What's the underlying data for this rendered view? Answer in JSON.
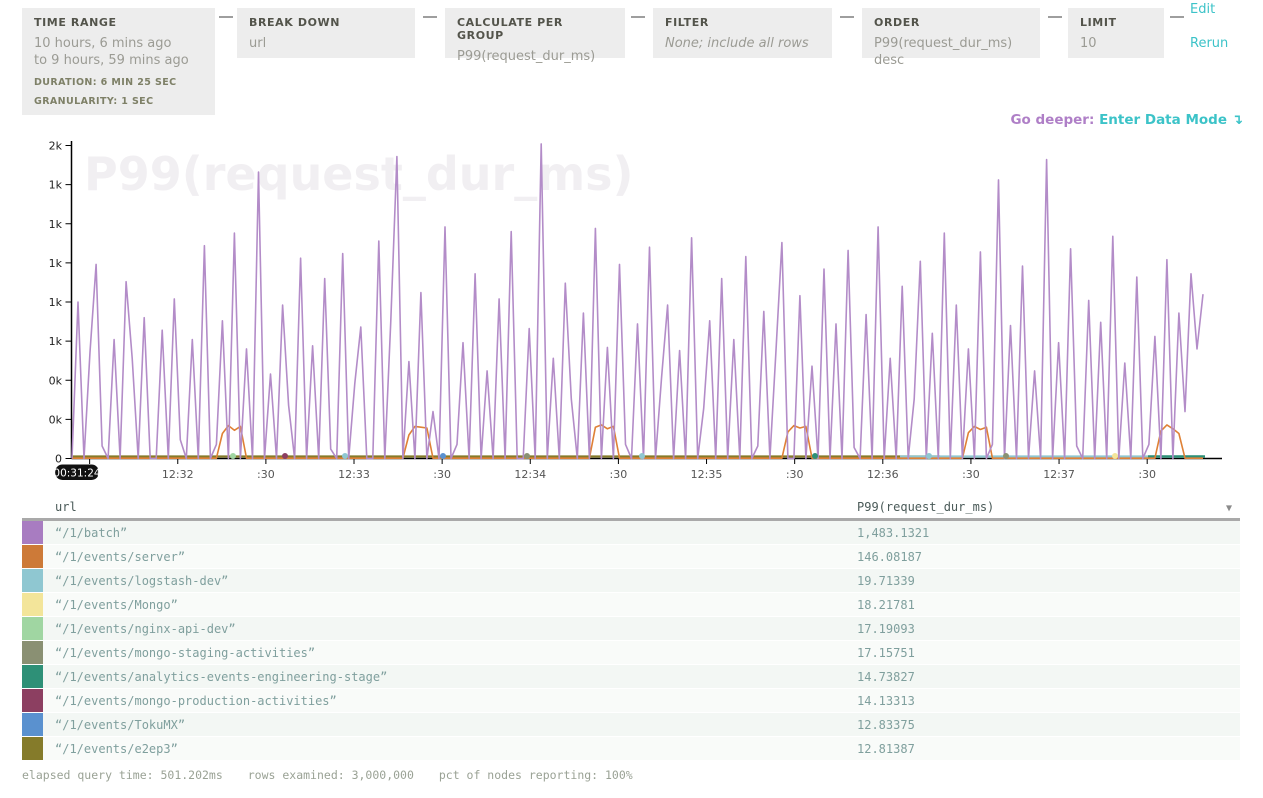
{
  "panels": {
    "time_range": {
      "title": "TIME RANGE",
      "line1": "10 hours, 6 mins ago",
      "line2": "to 9 hours, 59 mins ago",
      "duration": "DURATION: 6 MIN 25 SEC",
      "granularity": "GRANULARITY: 1 SEC"
    },
    "break_down": {
      "title": "BREAK DOWN",
      "value": "url"
    },
    "calculate": {
      "title": "CALCULATE PER GROUP",
      "value": "P99(request_dur_ms)"
    },
    "filter": {
      "title": "FILTER",
      "value": "None; include all rows"
    },
    "order": {
      "title": "ORDER",
      "value": "P99(request_dur_ms) desc"
    },
    "limit": {
      "title": "LIMIT",
      "value": "10"
    },
    "edit_label": "Edit",
    "rerun_label": "Rerun"
  },
  "go_deeper": {
    "prefix": "Go deeper:",
    "link": "Enter Data Mode",
    "arrow": "↴"
  },
  "chart_data": {
    "type": "line",
    "title": "P99(request_dur_ms)",
    "xlabel": "",
    "ylabel": "",
    "ylim": [
      0,
      2000
    ],
    "duration_sec": 385,
    "grid": false,
    "legend_position": "none",
    "y_ticks": [
      {
        "v": 2000,
        "label": "2k"
      },
      {
        "v": 1750,
        "label": "1k"
      },
      {
        "v": 1500,
        "label": "1k"
      },
      {
        "v": 1250,
        "label": "1k"
      },
      {
        "v": 1000,
        "label": "1k"
      },
      {
        "v": 750,
        "label": "1k"
      },
      {
        "v": 500,
        "label": "0k"
      },
      {
        "v": 250,
        "label": "0k"
      },
      {
        "v": 0,
        "label": "0"
      }
    ],
    "x_start_badge": {
      "label": "00:31:24",
      "s": 0
    },
    "x_ticks": [
      {
        "s": 6,
        "label": ""
      },
      {
        "s": 36,
        "label": "12:32"
      },
      {
        "s": 66,
        "label": ":30"
      },
      {
        "s": 96,
        "label": "12:33"
      },
      {
        "s": 126,
        "label": ":30"
      },
      {
        "s": 156,
        "label": "12:34"
      },
      {
        "s": 186,
        "label": ":30"
      },
      {
        "s": 216,
        "label": "12:35"
      },
      {
        "s": 246,
        "label": ":30"
      },
      {
        "s": 276,
        "label": "12:36"
      },
      {
        "s": 306,
        "label": ":30"
      },
      {
        "s": 336,
        "label": "12:37"
      },
      {
        "s": 366,
        "label": ":30"
      }
    ],
    "series": [
      {
        "name": "“/1/batch”",
        "color": "#b38cc8",
        "values": [
          0,
          1000,
          0,
          680,
          1240,
          80,
          0,
          760,
          0,
          1130,
          640,
          0,
          900,
          0,
          0,
          820,
          0,
          1020,
          120,
          0,
          760,
          0,
          1360,
          0,
          90,
          880,
          0,
          1440,
          0,
          700,
          0,
          1830,
          0,
          540,
          0,
          980,
          340,
          0,
          1280,
          0,
          720,
          0,
          1150,
          60,
          0,
          1310,
          0,
          480,
          840,
          0,
          0,
          1390,
          0,
          880,
          1930,
          0,
          620,
          0,
          1060,
          0,
          300,
          0,
          1480,
          0,
          90,
          740,
          0,
          1180,
          0,
          560,
          0,
          1020,
          0,
          1450,
          0,
          0,
          830,
          0,
          2010,
          0,
          640,
          0,
          1120,
          380,
          0,
          930,
          0,
          1470,
          0,
          710,
          0,
          1240,
          90,
          0,
          860,
          0,
          1350,
          0,
          520,
          980,
          0,
          690,
          0,
          1410,
          0,
          320,
          880,
          0,
          1150,
          0,
          760,
          0,
          1290,
          0,
          80,
          940,
          0,
          680,
          1380,
          0,
          0,
          1040,
          0,
          590,
          0,
          1210,
          0,
          860,
          0,
          1330,
          70,
          0,
          920,
          0,
          1480,
          0,
          640,
          0,
          1100,
          0,
          380,
          1260,
          0,
          800,
          0,
          1440,
          0,
          980,
          0,
          700,
          0,
          1320,
          0,
          90,
          1780,
          0,
          850,
          0,
          1230,
          0,
          560,
          0,
          1910,
          0,
          740,
          0,
          1340,
          80,
          0,
          1010,
          0,
          870,
          0,
          1420,
          0,
          610,
          0,
          1160,
          0,
          90,
          780,
          0,
          1270,
          0,
          930,
          300,
          1180,
          700,
          1050
        ]
      },
      {
        "name": "“/1/events/server”",
        "color": "#df8136",
        "bumps": [
          {
            "i": 25,
            "values": [
              160,
              210,
              180,
              205
            ]
          },
          {
            "i": 56,
            "values": [
              150,
              205,
              200,
              195
            ]
          },
          {
            "i": 87,
            "values": [
              200,
              215,
              190,
              205
            ]
          },
          {
            "i": 119,
            "values": [
              170,
              210,
              195,
              205
            ]
          },
          {
            "i": 149,
            "values": [
              165,
              205,
              185,
              200
            ]
          },
          {
            "i": 181,
            "values": [
              175,
              215,
              190,
              160
            ]
          }
        ]
      }
    ],
    "baseline_segments": [
      {
        "x0": 72,
        "x1": 940,
        "color": "#857b2a",
        "width": 2.2
      },
      {
        "x0": 900,
        "x1": 1203,
        "color": "#8fc7d1",
        "width": 2.2
      },
      {
        "x0": 1148,
        "x1": 1205,
        "color": "#2e9077",
        "width": 2.6
      }
    ],
    "baseline_dots": [
      {
        "x": 233,
        "color": "#a0d6a2"
      },
      {
        "x": 285,
        "color": "#8c3f61"
      },
      {
        "x": 345,
        "color": "#8fc7d1"
      },
      {
        "x": 443,
        "color": "#5a91cf"
      },
      {
        "x": 527,
        "color": "#8a9073"
      },
      {
        "x": 642,
        "color": "#8fc7d1"
      },
      {
        "x": 815,
        "color": "#2e9077"
      },
      {
        "x": 929,
        "color": "#8fc7d1"
      },
      {
        "x": 1006,
        "color": "#8a9073"
      },
      {
        "x": 1115,
        "color": "#f3e59a"
      }
    ]
  },
  "table": {
    "columns": [
      "url",
      "P99(request_dur_ms)"
    ],
    "sort_icon": "▼",
    "rows": [
      {
        "color": "#a87cc1",
        "url": "“/1/batch”",
        "value": "1,483.1321"
      },
      {
        "color": "#cd7a38",
        "url": "“/1/events/server”",
        "value": "146.08187"
      },
      {
        "color": "#8fc7d1",
        "url": "“/1/events/logstash-dev”",
        "value": "19.71339"
      },
      {
        "color": "#f3e59a",
        "url": "“/1/events/Mongo”",
        "value": "18.21781"
      },
      {
        "color": "#a0d6a2",
        "url": "“/1/events/nginx-api-dev”",
        "value": "17.19093"
      },
      {
        "color": "#8a9073",
        "url": "“/1/events/mongo-staging-activities”",
        "value": "17.15751"
      },
      {
        "color": "#2e9077",
        "url": "“/1/events/analytics-events-engineering-stage”",
        "value": "14.73827"
      },
      {
        "color": "#8c3f61",
        "url": "“/1/events/mongo-production-activities”",
        "value": "14.13313"
      },
      {
        "color": "#5a91cf",
        "url": "“/1/events/TokuMX”",
        "value": "12.83375"
      },
      {
        "color": "#857b2a",
        "url": "“/1/events/e2ep3”",
        "value": "12.81387"
      }
    ]
  },
  "footer": {
    "stats": [
      "elapsed query time: 501.202ms",
      "rows examined: 3,000,000",
      "pct of nodes reporting: 100%"
    ]
  }
}
